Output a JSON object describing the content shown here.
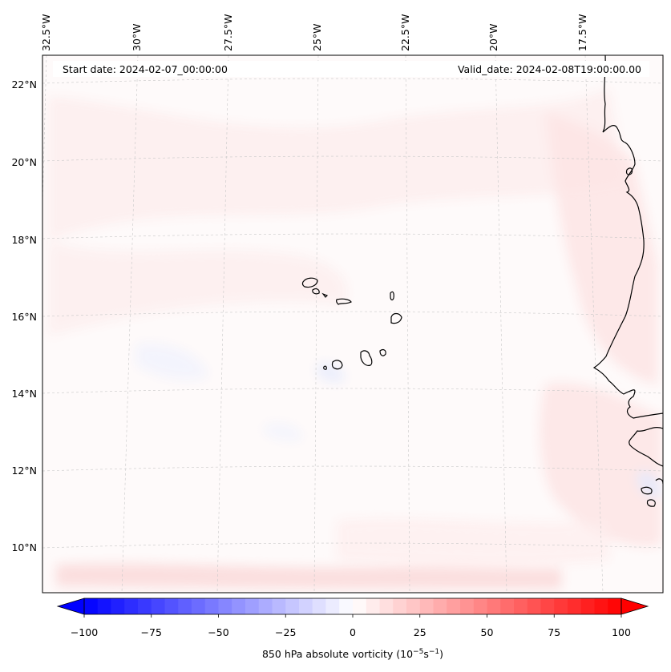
{
  "figure": {
    "start_date_text": "Start date: 2024-02-07_00:00:00",
    "valid_date_text": "Valid_date: 2024-02-08T19:00:00.00"
  },
  "map": {
    "lon_ticks": [
      "32.5°W",
      "30°W",
      "27.5°W",
      "25°W",
      "22.5°W",
      "20°W",
      "17.5°W"
    ],
    "lat_ticks": [
      "22°N",
      "20°N",
      "18°N",
      "16°N",
      "14°N",
      "12°N",
      "10°N"
    ],
    "gridlines": true,
    "coastline_color": "#000000",
    "field": "850 hPa absolute vorticity"
  },
  "colorbar": {
    "label_main": "850 hPa absolute vorticity (10",
    "label_exp1": "−5",
    "label_mid": "s",
    "label_exp2": "−1",
    "label_end": ")",
    "tick_labels": [
      "−100",
      "−75",
      "−50",
      "−25",
      "0",
      "25",
      "50",
      "75",
      "100"
    ],
    "min": -100,
    "max": 100,
    "step": 5,
    "extend": "both",
    "low_color": "#0000ff",
    "high_color": "#ff0000"
  }
}
